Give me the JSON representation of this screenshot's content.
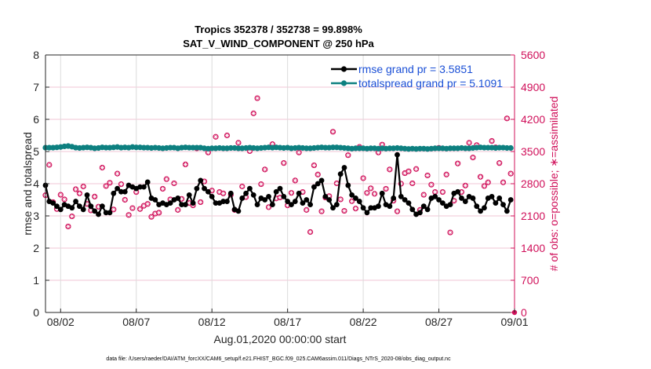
{
  "chart_data": {
    "type": "line",
    "title_line1": "Tropics 352378 / 352738 = 99.898%",
    "title_line2": "SAT_V_WIND_COMPONENT @ 250 hPa",
    "xlabel": "Aug.01,2020 00:00:00 start",
    "ylabel_left": "rmse and totalspread",
    "ylabel_right": "# of obs: o=possible; ∗=assimilated",
    "ylim_left": [
      0,
      8
    ],
    "ylim_right": [
      0,
      5600
    ],
    "yticks_left": [
      "0",
      "1",
      "2",
      "3",
      "4",
      "5",
      "6",
      "7",
      "8"
    ],
    "yticks_right": [
      "0",
      "700",
      "1400",
      "2100",
      "2800",
      "3500",
      "4200",
      "4900",
      "5600"
    ],
    "xlim_days": [
      0,
      31
    ],
    "xticks": [
      {
        "day": 1,
        "label": "08/02"
      },
      {
        "day": 6,
        "label": "08/07"
      },
      {
        "day": 11,
        "label": "08/12"
      },
      {
        "day": 16,
        "label": "08/17"
      },
      {
        "day": 21,
        "label": "08/22"
      },
      {
        "day": 26,
        "label": "08/27"
      },
      {
        "day": 31,
        "label": "09/01"
      }
    ],
    "grid": true,
    "legend_position": "top-right",
    "time_step_days": 0.25,
    "series": [
      {
        "name": "rmse grand pr = 3.5851",
        "color": "#000000",
        "axis": "left",
        "values": [
          3.95,
          3.45,
          3.4,
          3.3,
          3.2,
          3.35,
          3.3,
          3.25,
          3.45,
          3.3,
          3.2,
          3.65,
          3.3,
          3.15,
          3.05,
          3.3,
          3.1,
          3.1,
          3.7,
          3.85,
          3.75,
          3.75,
          3.95,
          3.9,
          3.85,
          3.9,
          3.9,
          4.05,
          3.55,
          3.5,
          3.35,
          3.4,
          3.35,
          3.4,
          3.5,
          3.55,
          3.35,
          3.35,
          3.65,
          3.4,
          3.85,
          4.1,
          3.85,
          3.75,
          3.6,
          3.4,
          3.4,
          3.45,
          3.45,
          3.7,
          3.2,
          3.15,
          3.55,
          3.7,
          3.85,
          3.65,
          3.35,
          3.55,
          3.5,
          3.6,
          3.35,
          3.75,
          3.85,
          3.6,
          3.45,
          3.35,
          3.45,
          3.7,
          3.4,
          3.5,
          3.35,
          3.9,
          4.0,
          4.1,
          3.6,
          3.5,
          3.25,
          3.35,
          4.3,
          4.5,
          3.95,
          3.65,
          3.55,
          3.45,
          3.25,
          3.1,
          3.25,
          3.25,
          3.3,
          3.7,
          3.35,
          3.3,
          3.55,
          4.9,
          3.6,
          3.5,
          3.4,
          3.2,
          3.05,
          3.1,
          3.3,
          3.2,
          3.55,
          3.6,
          3.5,
          3.4,
          3.3,
          3.35,
          3.7,
          3.75,
          3.55,
          3.45,
          3.6,
          3.55,
          3.3,
          3.15,
          3.25,
          3.55,
          3.6,
          3.4,
          3.55,
          3.35,
          3.15,
          3.5
        ]
      },
      {
        "name": "totalspread grand pr = 5.1091",
        "color": "#0d8080",
        "axis": "left",
        "values": [
          5.12,
          5.12,
          5.12,
          5.13,
          5.14,
          5.16,
          5.17,
          5.15,
          5.12,
          5.11,
          5.12,
          5.13,
          5.12,
          5.1,
          5.11,
          5.13,
          5.12,
          5.12,
          5.13,
          5.14,
          5.12,
          5.13,
          5.12,
          5.14,
          5.13,
          5.13,
          5.12,
          5.12,
          5.11,
          5.12,
          5.11,
          5.1,
          5.11,
          5.12,
          5.12,
          5.1,
          5.12,
          5.13,
          5.12,
          5.12,
          5.12,
          5.12,
          5.1,
          5.09,
          5.1,
          5.1,
          5.11,
          5.1,
          5.1,
          5.11,
          5.11,
          5.1,
          5.1,
          5.11,
          5.12,
          5.11,
          5.1,
          5.11,
          5.12,
          5.13,
          5.12,
          5.13,
          5.12,
          5.11,
          5.12,
          5.1,
          5.11,
          5.12,
          5.11,
          5.1,
          5.1,
          5.11,
          5.12,
          5.13,
          5.12,
          5.12,
          5.13,
          5.13,
          5.12,
          5.11,
          5.1,
          5.09,
          5.1,
          5.1,
          5.1,
          5.09,
          5.1,
          5.1,
          5.09,
          5.1,
          5.09,
          5.1,
          5.1,
          5.11,
          5.1,
          5.09,
          5.08,
          5.09,
          5.08,
          5.09,
          5.09,
          5.08,
          5.09,
          5.1,
          5.1,
          5.1,
          5.09,
          5.1,
          5.1,
          5.1,
          5.11,
          5.1,
          5.1,
          5.11,
          5.12,
          5.13,
          5.12,
          5.12,
          5.12,
          5.11,
          5.12,
          5.12,
          5.11,
          5.11
        ]
      },
      {
        "name": "# obs assimilated",
        "color": "#d0105a",
        "axis": "right",
        "values": [
          2550,
          3210,
          2400,
          2250,
          2560,
          2460,
          1870,
          2090,
          2680,
          2590,
          2740,
          2360,
          2220,
          2520,
          2300,
          3150,
          2750,
          2820,
          2240,
          3020,
          2790,
          2450,
          2120,
          2270,
          2620,
          2250,
          2320,
          2360,
          2080,
          2150,
          2170,
          2690,
          2900,
          2460,
          2810,
          2230,
          2470,
          3220,
          2380,
          2330,
          3570,
          2400,
          2850,
          3480,
          2650,
          3820,
          2620,
          2590,
          3850,
          2560,
          2230,
          3690,
          2740,
          2510,
          3510,
          4330,
          4660,
          2790,
          3110,
          2290,
          3660,
          2480,
          2500,
          3250,
          2330,
          2600,
          2870,
          3480,
          2620,
          2230,
          1750,
          3200,
          3000,
          2200,
          2500,
          2530,
          3930,
          2810,
          2460,
          2210,
          3420,
          2420,
          2260,
          3600,
          2920,
          2600,
          2700,
          2580,
          3480,
          3650,
          2690,
          3110,
          2430,
          2200,
          2800,
          3030,
          3070,
          2810,
          3120,
          2230,
          2560,
          2980,
          2780,
          2620,
          3580,
          2620,
          3000,
          1740,
          2430,
          3240,
          2620,
          2760,
          3690,
          3370,
          3640,
          2950,
          2750,
          2830,
          3730,
          3590,
          3250,
          2830,
          4220,
          3020
        ]
      }
    ],
    "legend": [
      {
        "label": "rmse grand pr = 3.5851",
        "color": "#000000"
      },
      {
        "label": "totalspread grand pr = 5.1091",
        "color": "#0d8080"
      }
    ],
    "footnote": "data file: /Users/raeder/DAI/ATM_forcXX/CAM6_setup/f.e21.FHIST_BGC.f09_025.CAM6assim.011/Diags_NTrS_2020-08/obs_diag_output.nc"
  }
}
